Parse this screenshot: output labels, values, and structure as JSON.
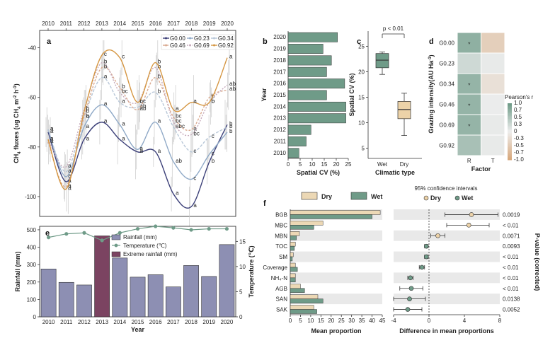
{
  "panels": {
    "a": "a",
    "b": "b",
    "c": "c",
    "d": "d",
    "e": "e",
    "f": "f"
  },
  "chart_data": [
    {
      "id": "a",
      "type": "line",
      "title": "",
      "xlabel": "Year",
      "ylabel": "CH4 fluxes (ug CH4 m-2 h-1)",
      "ylabel_parts": {
        "main": "CH",
        "s1": "4",
        "mid": " fluxes (ug CH",
        "s2": "4",
        "m": " m",
        "s3": "-2",
        "h": " h",
        "s4": "-1",
        ")": ")"
      },
      "ylim": [
        -108,
        -33
      ],
      "yticks": [
        -100,
        -80,
        -60,
        -40
      ],
      "ytick_labels": [
        "-100",
        "-80",
        "-60",
        "-40"
      ],
      "x": [
        2010,
        2011,
        2012,
        2013,
        2014,
        2015,
        2016,
        2017,
        2018,
        2019,
        2020
      ],
      "xtick_labels": [
        "2010",
        "2011",
        "2012",
        "2013",
        "2014",
        "2015",
        "2016",
        "2017",
        "2018",
        "2019",
        "2020"
      ],
      "series": [
        {
          "name": "G0.00",
          "color": "#3b3f78",
          "dash": "",
          "values": [
            -74,
            -94,
            -77,
            -70,
            -77,
            -82,
            -82,
            -99,
            -104,
            -86,
            -71
          ],
          "letters": [
            "a",
            "a",
            "a",
            "a",
            "a",
            "a",
            "a",
            "a",
            "a",
            "b",
            "b"
          ]
        },
        {
          "name": "G0.23",
          "color": "#8fa9c7",
          "dash": "",
          "values": [
            -73,
            -92,
            -72,
            -63,
            -71,
            -81,
            -70,
            -86,
            -93,
            -83,
            -74
          ],
          "letters": [
            "a",
            "a",
            "a",
            "a",
            "a",
            "a",
            "a",
            "ab",
            "c",
            "c",
            "b"
          ]
        },
        {
          "name": "G0.34",
          "color": "#b8c7d8",
          "dash": "4,2",
          "values": [
            -73,
            -90,
            -68,
            -52,
            -62,
            -64,
            -58,
            -72,
            -82,
            -76,
            -72
          ],
          "letters": [
            "a",
            "a",
            "a",
            "a",
            "a",
            "ab",
            "b",
            "abc",
            "c",
            "c",
            "b"
          ]
        },
        {
          "name": "G0.46",
          "color": "#d9a98f",
          "dash": "3,2",
          "values": [
            -78,
            -96,
            -68,
            -48,
            -56,
            -65,
            -52,
            -68,
            -73,
            -60,
            -57
          ],
          "letters": [
            "a",
            "a",
            "b",
            "b",
            "b",
            "ab",
            "b",
            "bc",
            "a",
            "b",
            "ab"
          ]
        },
        {
          "name": "G0.69",
          "color": "#c6aabb",
          "dash": "2,2",
          "values": [
            -77,
            -88,
            -65,
            -46,
            -58,
            -62,
            -48,
            -70,
            -75,
            -62,
            -55
          ],
          "letters": [
            "a",
            "a",
            "b",
            "b",
            "bc",
            "bc",
            "b",
            "bc",
            "bc",
            "b",
            "ab"
          ]
        },
        {
          "name": "G0.92",
          "color": "#d59642",
          "dash": "",
          "values": [
            -77,
            -97,
            -66,
            -43,
            -44,
            -62,
            -46,
            -65,
            -62,
            -62,
            -44
          ],
          "letters": [
            "a",
            "a",
            "b",
            "c",
            "c",
            "c",
            "b",
            "a",
            "a",
            "b",
            "a"
          ]
        }
      ]
    },
    {
      "id": "b",
      "type": "bar",
      "orientation": "horizontal",
      "xlabel": "Spatial CV (%)",
      "ylabel": "Year",
      "xlim": [
        0,
        25
      ],
      "xticks": [
        "0",
        "5",
        "10",
        "15",
        "20",
        "25"
      ],
      "color": "#6f9b88",
      "categories": [
        "2020",
        "2019",
        "2018",
        "2017",
        "2016",
        "2015",
        "2014",
        "2013",
        "2012",
        "2011",
        "2010"
      ],
      "values": [
        20.5,
        14.5,
        18.0,
        16.0,
        23.5,
        16.0,
        24.0,
        24.0,
        9.5,
        7.5,
        4.5
      ]
    },
    {
      "id": "c",
      "type": "box",
      "title": "p < 0.01",
      "xlabel": "Climatic type",
      "ylabel": "Spatial CV (%)",
      "ylim": [
        3,
        28
      ],
      "yticks": [
        "5",
        "10",
        "15",
        "20",
        "25"
      ],
      "categories": [
        "Wet",
        "Dry"
      ],
      "colors": [
        "#6f9b88",
        "#ecd2a8"
      ],
      "boxes": [
        {
          "name": "Wet",
          "min": 19.5,
          "q1": 20.8,
          "median": 22.3,
          "q3": 23.6,
          "max": 23.9
        },
        {
          "name": "Dry",
          "min": 7.5,
          "q1": 10.8,
          "median": 12.6,
          "q3": 14.2,
          "max": 15.8
        }
      ]
    },
    {
      "id": "d",
      "type": "heatmap",
      "xlabel": "Factor",
      "ylabel": "Grazing intensity(AU Ha-1)",
      "ylabel_parts": {
        "main": "Grazing intensity(AU Ha",
        "sup": "-1",
        ")": ")"
      },
      "columns": [
        "R",
        "T"
      ],
      "rows": [
        "G0.00",
        "G0.23",
        "G0.34",
        "G0.46",
        "G0.69",
        "G0.92"
      ],
      "values": [
        [
          0.75,
          -0.45
        ],
        [
          0.25,
          0.05
        ],
        [
          0.7,
          -0.2
        ],
        [
          0.7,
          0.02
        ],
        [
          0.7,
          0.05
        ],
        [
          0.55,
          0.05
        ]
      ],
      "stars": [
        [
          "*",
          ""
        ],
        [
          "",
          ""
        ],
        [
          "*",
          ""
        ],
        [
          "*",
          ""
        ],
        [
          "*",
          ""
        ],
        [
          "",
          ""
        ]
      ],
      "colorbar": {
        "title": "Pearson's r",
        "ticks": [
          "1.0",
          "0.7",
          "0.5",
          "0.3",
          "0",
          "-0.3",
          "-0.5",
          "-0.7",
          "-1.0"
        ]
      }
    },
    {
      "id": "e",
      "type": "bar",
      "xlabel": "Year",
      "ylabel": "Rainfall (mm)",
      "ylabel2": "Temperature (℃)",
      "ylim": [
        0,
        520
      ],
      "yticks": [
        "0",
        "100",
        "200",
        "300",
        "400",
        "500"
      ],
      "y2ticks": [
        "0",
        "5",
        "10",
        "15"
      ],
      "y2lim": [
        0,
        18
      ],
      "categories": [
        "2010",
        "2011",
        "2012",
        "2013",
        "2014",
        "2015",
        "2016",
        "2017",
        "2018",
        "2019",
        "2020"
      ],
      "series": [
        {
          "name": "Rainfall (mm)",
          "color": "#8d8fb3",
          "values": [
            275,
            198,
            183,
            465,
            338,
            228,
            242,
            172,
            295,
            232,
            415
          ]
        },
        {
          "name": "Temperature (℃)",
          "color": "#6f9b88",
          "values": [
            15.8,
            16.5,
            16.7,
            15.2,
            16.7,
            17.5,
            18.0,
            17.7,
            17.3,
            17.5,
            17.5
          ]
        },
        {
          "name": "Extreme rainfall (mm)",
          "color": "#7b4361",
          "highlight_index": 3
        }
      ]
    },
    {
      "id": "f1",
      "type": "bar",
      "orientation": "horizontal",
      "xlabel": "Mean proportion",
      "xlim": [
        0,
        45
      ],
      "xticks": [
        "0",
        "5",
        "10",
        "15",
        "20",
        "25",
        "30",
        "35",
        "40",
        "45"
      ],
      "categories": [
        "BGB",
        "MBC",
        "MBN",
        "TOC",
        "SM",
        "Coverage",
        "NH₄-N",
        "AGB",
        "SAN",
        "SAK"
      ],
      "series": [
        {
          "name": "Dry",
          "color": "#ecd8b5",
          "values": [
            44,
            16,
            4.5,
            2.5,
            1.5,
            2.5,
            2.5,
            5.0,
            13.5,
            11.5
          ]
        },
        {
          "name": "Wet",
          "color": "#6f9b88",
          "values": [
            40,
            11.5,
            3.0,
            2.0,
            1.0,
            3.5,
            2.5,
            7.0,
            16.0,
            13.0
          ]
        }
      ]
    },
    {
      "id": "f2",
      "type": "scatter",
      "title": "95% confidence intervals",
      "xlabel": "Difference in mean proportions",
      "ylabel": "P-value (corrected)",
      "xlim": [
        -4,
        8
      ],
      "xticks": [
        "-4",
        "0",
        "4",
        "8"
      ],
      "categories": [
        "BGB",
        "MBC",
        "MBN",
        "TOC",
        "SM",
        "Coverage",
        "NH₄-N",
        "AGB",
        "SAN",
        "SAK"
      ],
      "diff": [
        4.8,
        4.5,
        1.0,
        -0.3,
        -0.3,
        -0.8,
        -2.1,
        -2.0,
        -2.2,
        -2.4
      ],
      "ci_low": [
        1.8,
        2.0,
        0.2,
        -0.5,
        -0.5,
        -1.1,
        -2.4,
        -3.3,
        -4.0,
        -4.0
      ],
      "ci_high": [
        7.8,
        6.8,
        1.8,
        -0.1,
        -0.1,
        -0.5,
        -1.8,
        -0.7,
        -0.4,
        -0.8
      ],
      "point_colors": [
        "#ecd2a8",
        "#ecd2a8",
        "#ecd2a8",
        "#6f9b88",
        "#6f9b88",
        "#6f9b88",
        "#6f9b88",
        "#6f9b88",
        "#6f9b88",
        "#6f9b88"
      ],
      "pvalues": [
        "0.0019",
        "< 0.01",
        "0.0071",
        "0.0093",
        "< 0.01",
        "< 0.01",
        "< 0.01",
        "< 0.01",
        "0.0138",
        "0.0052"
      ],
      "legend": [
        "Dry",
        "Wet"
      ]
    }
  ]
}
